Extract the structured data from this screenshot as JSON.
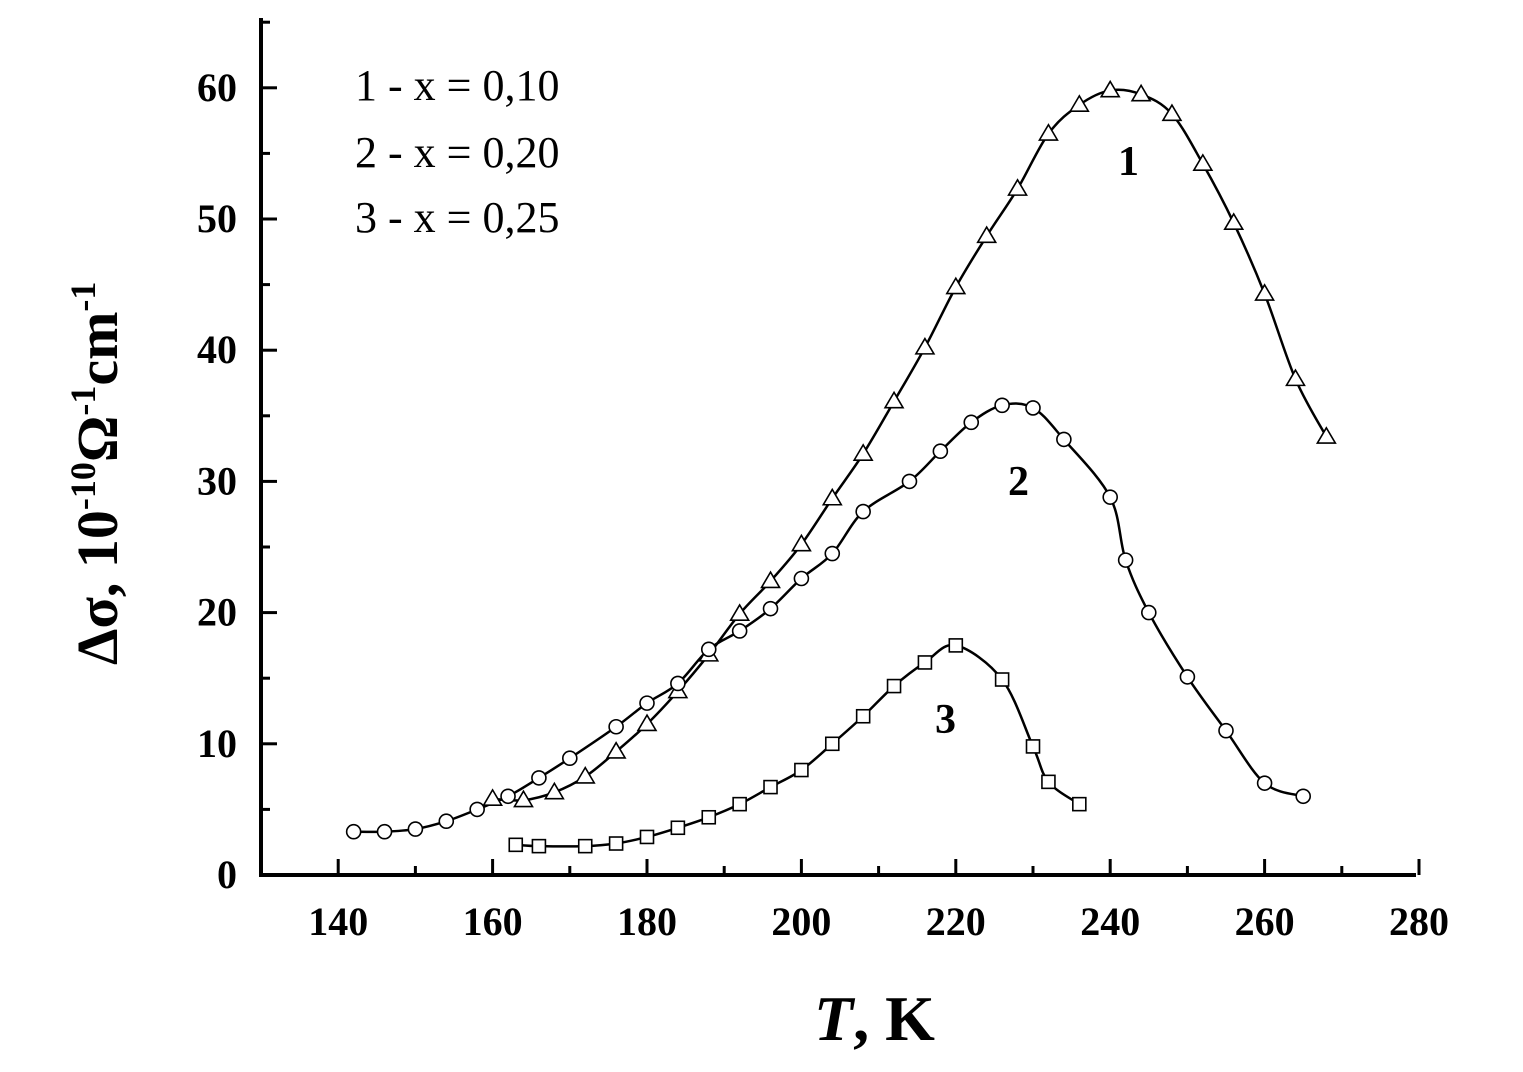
{
  "chart_data": {
    "type": "line",
    "xlabel": {
      "symbol": "T",
      "rest": ", K"
    },
    "ylabel": {
      "base": "Δσ, 10",
      "exp1": "-10",
      "omega": "Ω",
      "exp2": "-1",
      "unit": "cm",
      "exp3": "-1"
    },
    "xlim": [
      130,
      280
    ],
    "ylim": [
      0,
      65
    ],
    "xticks": [
      "140",
      "160",
      "180",
      "200",
      "220",
      "240",
      "260",
      "280"
    ],
    "yticks": [
      "0",
      "10",
      "20",
      "30",
      "40",
      "50",
      "60"
    ],
    "grid": false,
    "legend_position": "top-left",
    "legend": [
      "1 - x = 0,10",
      "2 - x = 0,20",
      "3 - x = 0,25"
    ],
    "series": [
      {
        "name": "1",
        "marker": "triangle",
        "x": [
          160,
          164,
          168,
          172,
          176,
          180,
          184,
          188,
          192,
          196,
          200,
          204,
          208,
          212,
          216,
          220,
          224,
          228,
          232,
          236,
          240,
          244,
          248,
          252,
          256,
          260,
          264,
          268
        ],
        "y": [
          5.8,
          5.7,
          6.3,
          7.5,
          9.4,
          11.5,
          14.0,
          16.8,
          19.9,
          22.4,
          25.2,
          28.7,
          32.1,
          36.1,
          40.2,
          44.8,
          48.7,
          52.3,
          56.5,
          58.7,
          59.8,
          59.5,
          58.0,
          54.2,
          49.7,
          44.3,
          37.8,
          33.4
        ]
      },
      {
        "name": "2",
        "marker": "circle",
        "x": [
          142,
          146,
          150,
          154,
          158,
          162,
          166,
          170,
          176,
          180,
          184,
          188,
          192,
          196,
          200,
          204,
          208,
          214,
          218,
          222,
          226,
          230,
          234,
          240,
          242,
          245,
          250,
          255,
          260,
          265
        ],
        "y": [
          3.3,
          3.3,
          3.5,
          4.1,
          5.0,
          6.0,
          7.4,
          8.9,
          11.3,
          13.1,
          14.6,
          17.2,
          18.6,
          20.3,
          22.6,
          24.5,
          27.7,
          30.0,
          32.3,
          34.5,
          35.8,
          35.6,
          33.2,
          28.8,
          24.0,
          20.0,
          15.1,
          11.0,
          7.0,
          6.0
        ]
      },
      {
        "name": "3",
        "marker": "square",
        "x": [
          163,
          166,
          172,
          176,
          180,
          184,
          188,
          192,
          196,
          200,
          204,
          208,
          212,
          216,
          220,
          226,
          230,
          232,
          236
        ],
        "y": [
          2.3,
          2.2,
          2.2,
          2.4,
          2.9,
          3.6,
          4.4,
          5.4,
          6.7,
          8.0,
          10.0,
          12.1,
          14.4,
          16.2,
          17.5,
          14.9,
          9.8,
          7.1,
          5.4
        ]
      }
    ]
  }
}
